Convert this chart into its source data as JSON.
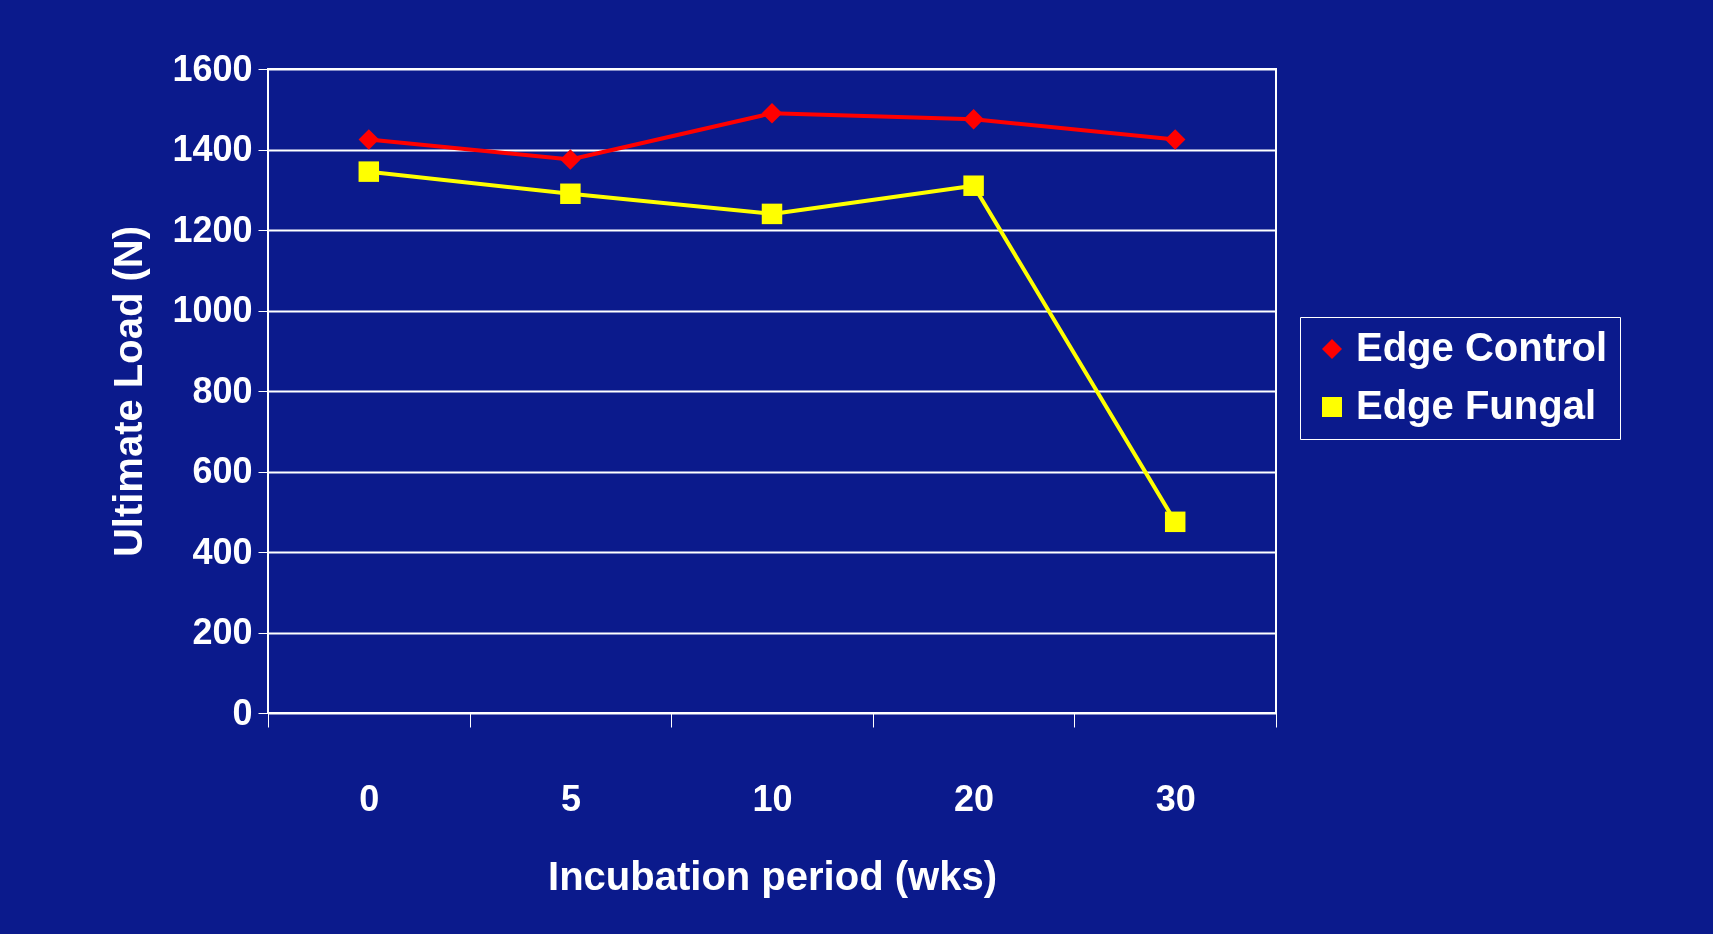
{
  "chart_data": {
    "type": "line",
    "xlabel": "Incubation period (wks)",
    "ylabel": "Ultimate Load (N)",
    "categories": [
      "0",
      "5",
      "10",
      "20",
      "30"
    ],
    "series": [
      {
        "name": "Edge Control",
        "color": "#ff0000",
        "marker": "diamond",
        "values": [
          1425,
          1375,
          1490,
          1475,
          1425
        ]
      },
      {
        "name": "Edge Fungal",
        "color": "#ffff00",
        "marker": "square",
        "values": [
          1345,
          1290,
          1240,
          1310,
          475
        ]
      }
    ],
    "ylim": [
      0,
      1600
    ],
    "yticks": [
      0,
      200,
      400,
      600,
      800,
      1000,
      1200,
      1400,
      1600
    ],
    "grid": "y",
    "legend": "right",
    "line_style": "solid"
  }
}
